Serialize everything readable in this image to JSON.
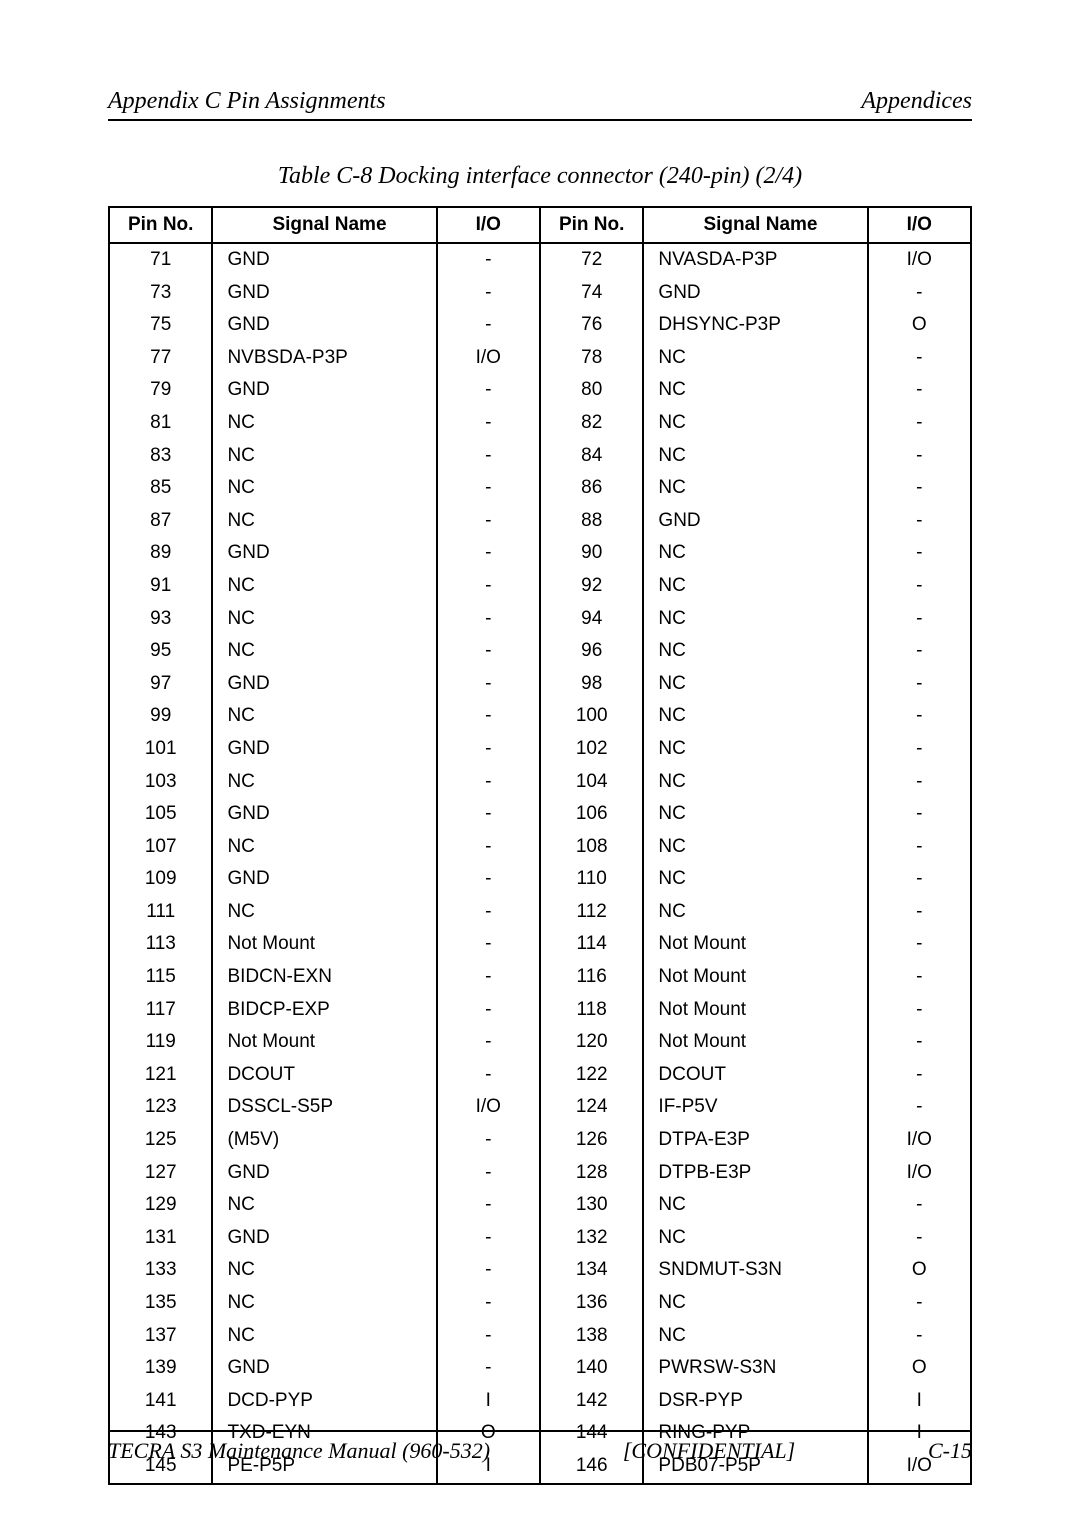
{
  "header": {
    "left": "Appendix C  Pin Assignments",
    "right": "Appendices"
  },
  "table_title": "Table  C-8   Docking interface connector (240-pin) (2/4)",
  "columns": [
    "Pin No.",
    "Signal Name",
    "I/O",
    "Pin No.",
    "Signal Name",
    "I/O"
  ],
  "rows": [
    [
      "71",
      "GND",
      "-",
      "72",
      "NVASDA-P3P",
      "I/O"
    ],
    [
      "73",
      "GND",
      "-",
      "74",
      "GND",
      "-"
    ],
    [
      "75",
      "GND",
      "-",
      "76",
      "DHSYNC-P3P",
      "O"
    ],
    [
      "77",
      "NVBSDA-P3P",
      "I/O",
      "78",
      "NC",
      "-"
    ],
    [
      "79",
      "GND",
      "-",
      "80",
      "NC",
      "-"
    ],
    [
      "81",
      "NC",
      "-",
      "82",
      "NC",
      "-"
    ],
    [
      "83",
      "NC",
      "-",
      "84",
      "NC",
      "-"
    ],
    [
      "85",
      "NC",
      "-",
      "86",
      "NC",
      "-"
    ],
    [
      "87",
      "NC",
      "-",
      "88",
      "GND",
      "-"
    ],
    [
      "89",
      "GND",
      "-",
      "90",
      "NC",
      "-"
    ],
    [
      "91",
      "NC",
      "-",
      "92",
      "NC",
      "-"
    ],
    [
      "93",
      "NC",
      "-",
      "94",
      "NC",
      "-"
    ],
    [
      "95",
      "NC",
      "-",
      "96",
      "NC",
      "-"
    ],
    [
      "97",
      "GND",
      "-",
      "98",
      "NC",
      "-"
    ],
    [
      "99",
      "NC",
      "-",
      "100",
      "NC",
      "-"
    ],
    [
      "101",
      "GND",
      "-",
      "102",
      "NC",
      "-"
    ],
    [
      "103",
      "NC",
      "-",
      "104",
      "NC",
      "-"
    ],
    [
      "105",
      "GND",
      "-",
      "106",
      "NC",
      "-"
    ],
    [
      "107",
      "NC",
      "-",
      "108",
      "NC",
      "-"
    ],
    [
      "109",
      "GND",
      "-",
      "110",
      "NC",
      "-"
    ],
    [
      "111",
      "NC",
      "-",
      "112",
      "NC",
      "-"
    ],
    [
      "113",
      "Not Mount",
      "-",
      "114",
      "Not Mount",
      "-"
    ],
    [
      "115",
      "BIDCN-EXN",
      "-",
      "116",
      "Not Mount",
      "-"
    ],
    [
      "117",
      "BIDCP-EXP",
      "-",
      "118",
      "Not Mount",
      "-"
    ],
    [
      "119",
      "Not Mount",
      "-",
      "120",
      "Not Mount",
      "-"
    ],
    [
      "121",
      "DCOUT",
      "-",
      "122",
      "DCOUT",
      "-"
    ],
    [
      "123",
      "DSSCL-S5P",
      "I/O",
      "124",
      "IF-P5V",
      "-"
    ],
    [
      "125",
      "(M5V)",
      "-",
      "126",
      "DTPA-E3P",
      "I/O"
    ],
    [
      "127",
      "GND",
      "-",
      "128",
      "DTPB-E3P",
      "I/O"
    ],
    [
      "129",
      "NC",
      "-",
      "130",
      "NC",
      "-"
    ],
    [
      "131",
      "GND",
      "-",
      "132",
      "NC",
      "-"
    ],
    [
      "133",
      "NC",
      "-",
      "134",
      "SNDMUT-S3N",
      "O"
    ],
    [
      "135",
      "NC",
      "-",
      "136",
      "NC",
      "-"
    ],
    [
      "137",
      "NC",
      "-",
      "138",
      "NC",
      "-"
    ],
    [
      "139",
      "GND",
      "-",
      "140",
      "PWRSW-S3N",
      "O"
    ],
    [
      "141",
      "DCD-PYP",
      "I",
      "142",
      "DSR-PYP",
      "I"
    ],
    [
      "143",
      "TXD-EYN",
      "O",
      "144",
      "RING-PYP",
      "I"
    ],
    [
      "145",
      "PE-P5P",
      "I",
      "146",
      "PDB07-P5P",
      "I/O"
    ]
  ],
  "footer": {
    "left": "TECRA S3  Maintenance Manual (960-532)",
    "center": "[CONFIDENTIAL]",
    "right": "C-15"
  }
}
